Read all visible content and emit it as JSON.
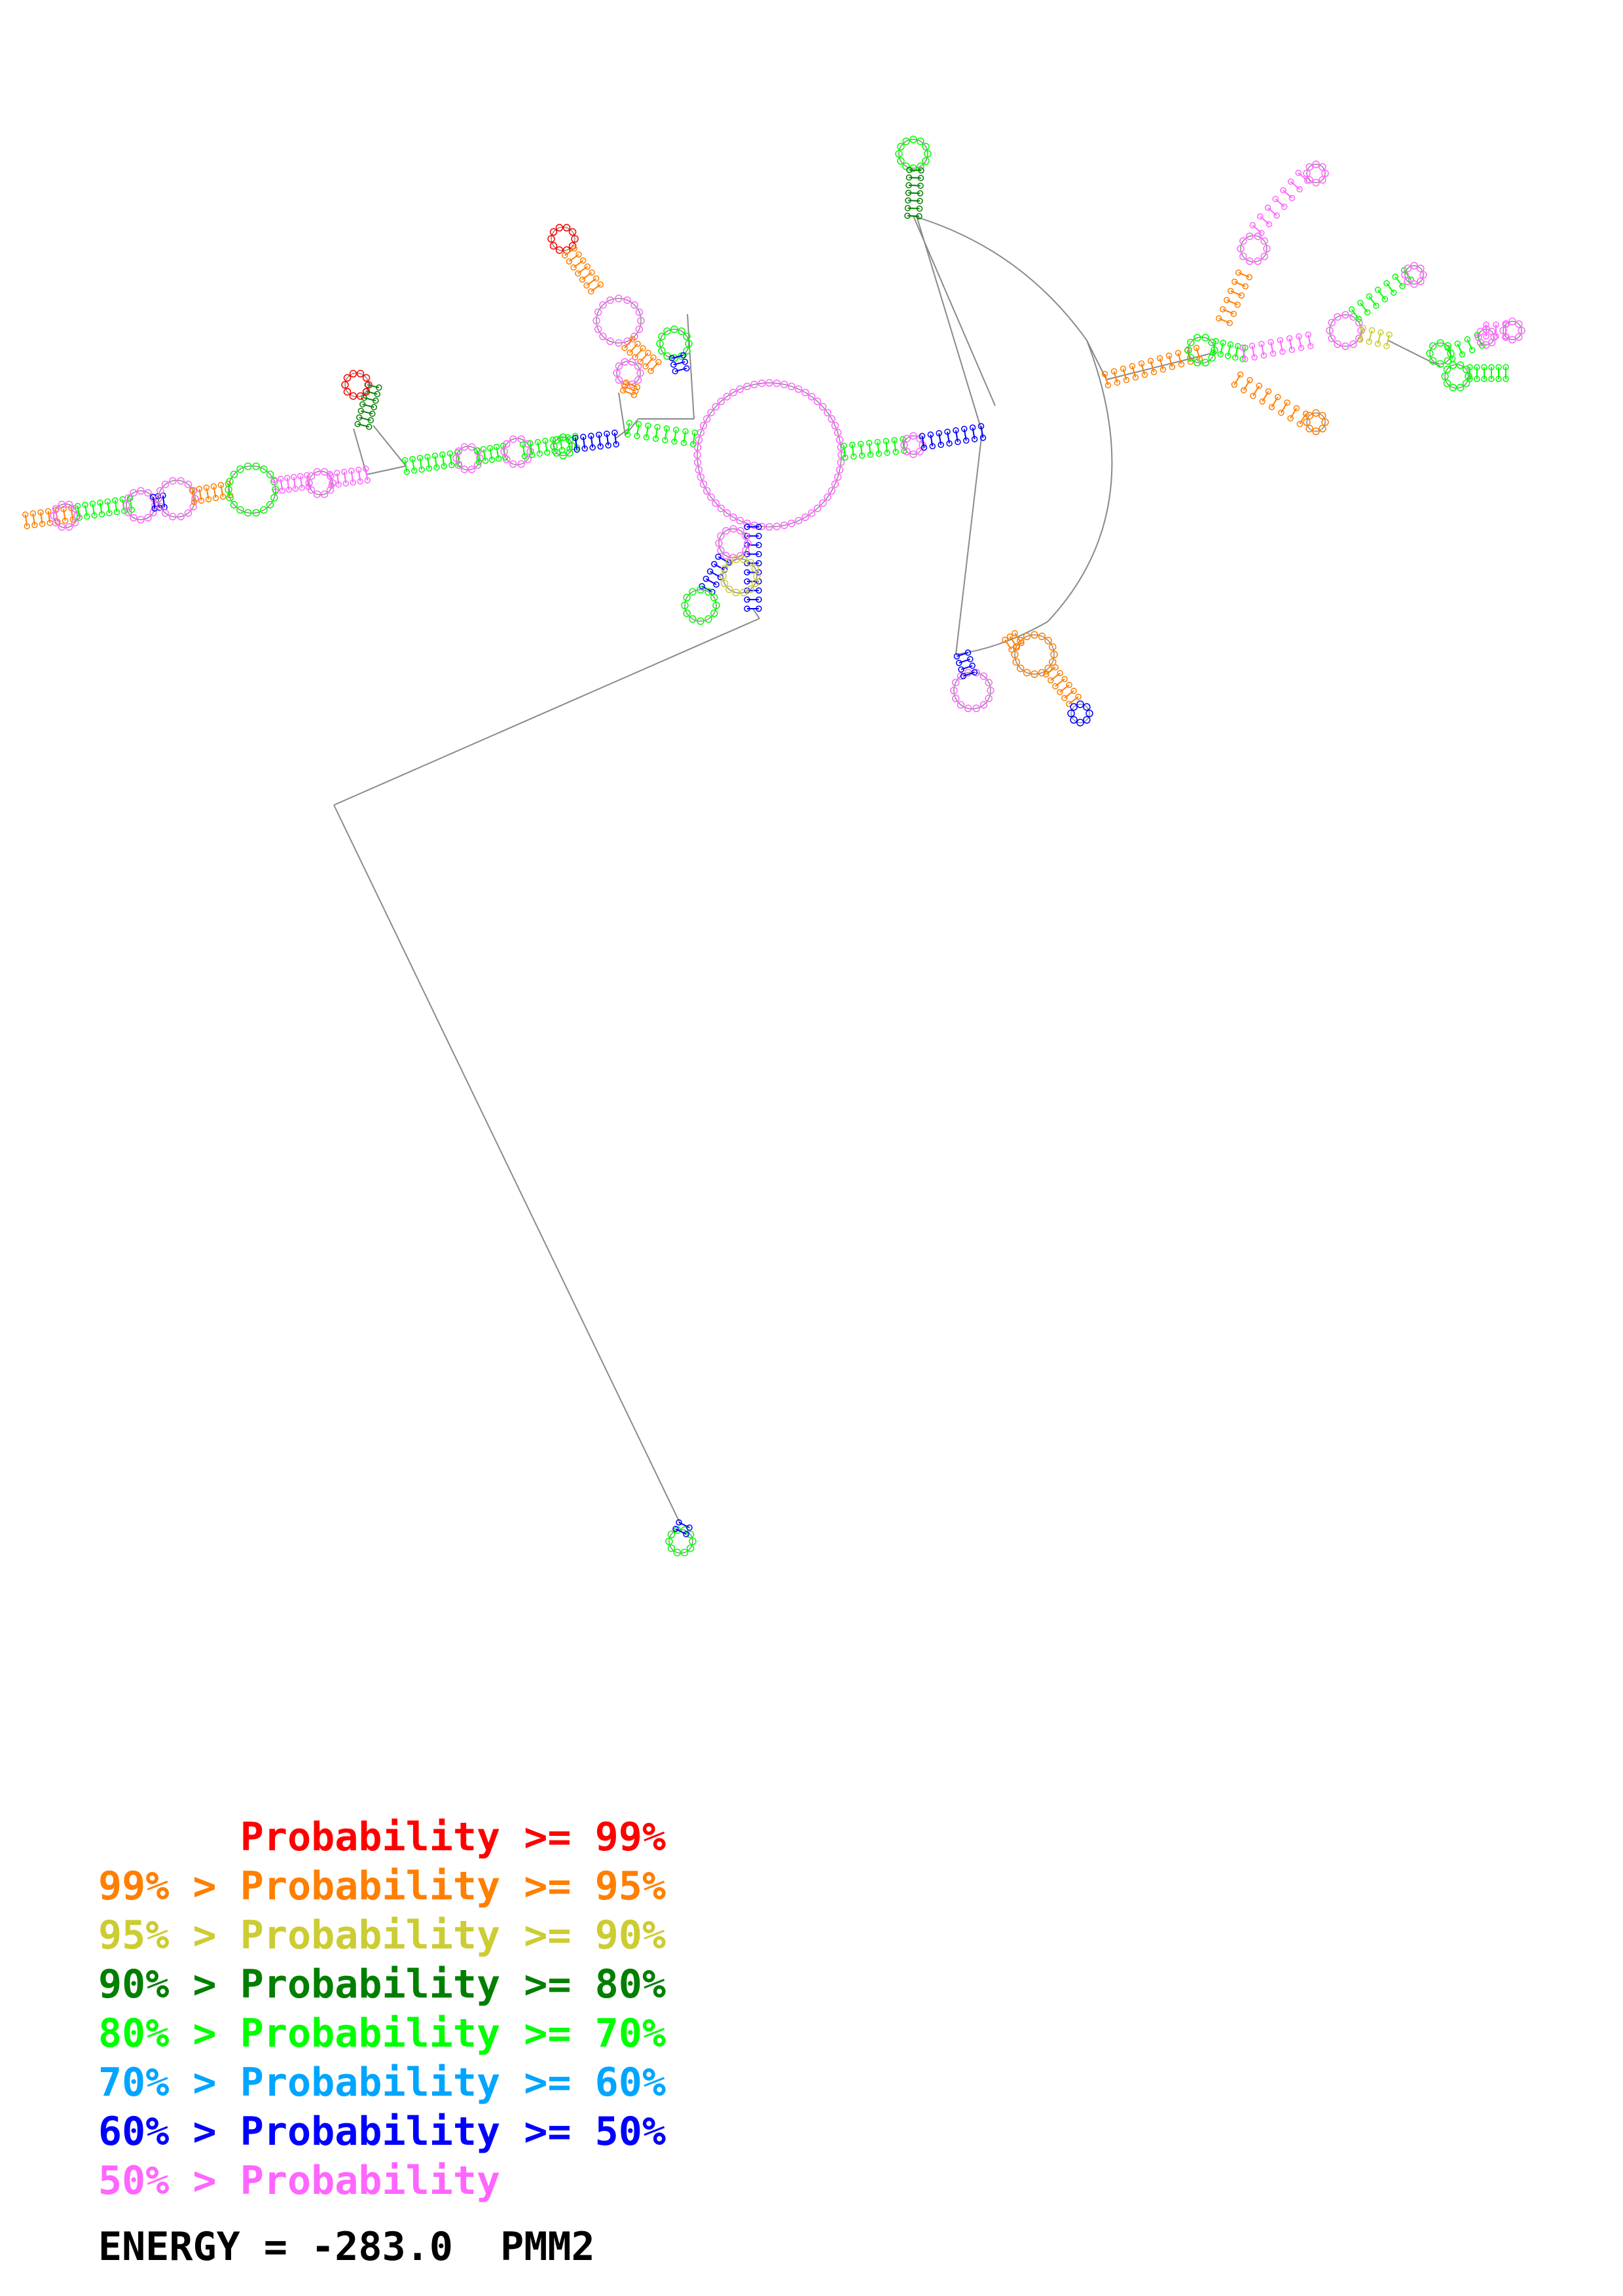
{
  "legend": {
    "rows": [
      {
        "lower": "",
        "gt": "",
        "label": "Probability",
        "ge": ">=",
        "upper": "99%",
        "color": "#ff0000"
      },
      {
        "lower": "99%",
        "gt": ">",
        "label": "Probability",
        "ge": ">=",
        "upper": "95%",
        "color": "#ff7f00"
      },
      {
        "lower": "95%",
        "gt": ">",
        "label": "Probability",
        "ge": ">=",
        "upper": "90%",
        "color": "#cccc33"
      },
      {
        "lower": "90%",
        "gt": ">",
        "label": "Probability",
        "ge": ">=",
        "upper": "80%",
        "color": "#007f00"
      },
      {
        "lower": "80%",
        "gt": ">",
        "label": "Probability",
        "ge": ">=",
        "upper": "70%",
        "color": "#00ff00"
      },
      {
        "lower": "70%",
        "gt": ">",
        "label": "Probability",
        "ge": ">=",
        "upper": "60%",
        "color": "#00a5ff"
      },
      {
        "lower": "60%",
        "gt": ">",
        "label": "Probability",
        "ge": ">=",
        "upper": "50%",
        "color": "#0000ff"
      },
      {
        "lower": "50%",
        "gt": ">",
        "label": "Probability",
        "ge": "",
        "upper": "",
        "color": "#ff66ff"
      }
    ]
  },
  "energy": {
    "label": "ENERGY = ",
    "value": "-283.0",
    "method": "PMM2"
  },
  "diagram": {
    "backbone_color": "#8a8a8a"
  }
}
